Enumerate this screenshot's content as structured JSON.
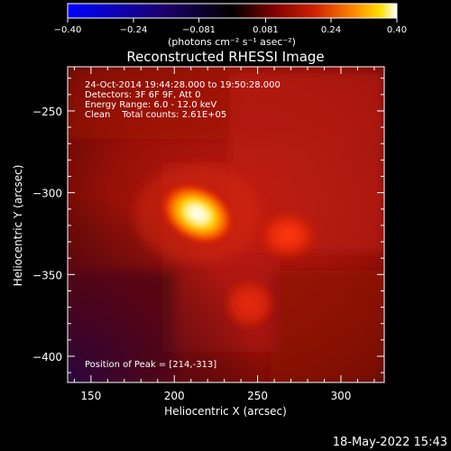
{
  "chart_data": {
    "type": "heatmap",
    "title": "Reconstructed RHESSI Image",
    "xlabel": "Heliocentric X (arcsec)",
    "ylabel": "Heliocentric Y (arcsec)",
    "xlim": [
      136,
      326
    ],
    "ylim": [
      -416,
      -223
    ],
    "x_ticks": [
      150,
      200,
      250,
      300
    ],
    "y_ticks": [
      -250,
      -300,
      -350,
      -400
    ],
    "colorbar": {
      "range": [
        -0.4,
        0.4
      ],
      "tick_values": [
        -0.4,
        -0.24,
        -0.081,
        0.081,
        0.24,
        0.4
      ],
      "tick_labels": [
        "-0.40",
        "-0.24",
        "-0.081",
        "0.081",
        "0.24",
        "0.40"
      ],
      "label": "(photons cm⁻² s⁻¹ asec⁻²)",
      "colormap": [
        "#0000ff",
        "#000000",
        "#aa0000",
        "#ff5500",
        "#ffd000",
        "#ffffff"
      ]
    },
    "info_lines": [
      "24-Oct-2014 19:44:28.000 to 19:50:28.000",
      "Detectors: 3F 6F 9F, Att 0",
      "Energy Range: 6.0 - 12.0 keV",
      "Clean    Total counts: 2.61E+05"
    ],
    "peak_label": "Position of Peak = [214,-313]",
    "sources": [
      {
        "x": 214,
        "y": -313,
        "value": 0.4
      },
      {
        "x": 268,
        "y": -326,
        "value": 0.16
      },
      {
        "x": 245,
        "y": -368,
        "value": 0.12
      }
    ]
  },
  "footer": {
    "date": "18-May-2022 15:43"
  }
}
